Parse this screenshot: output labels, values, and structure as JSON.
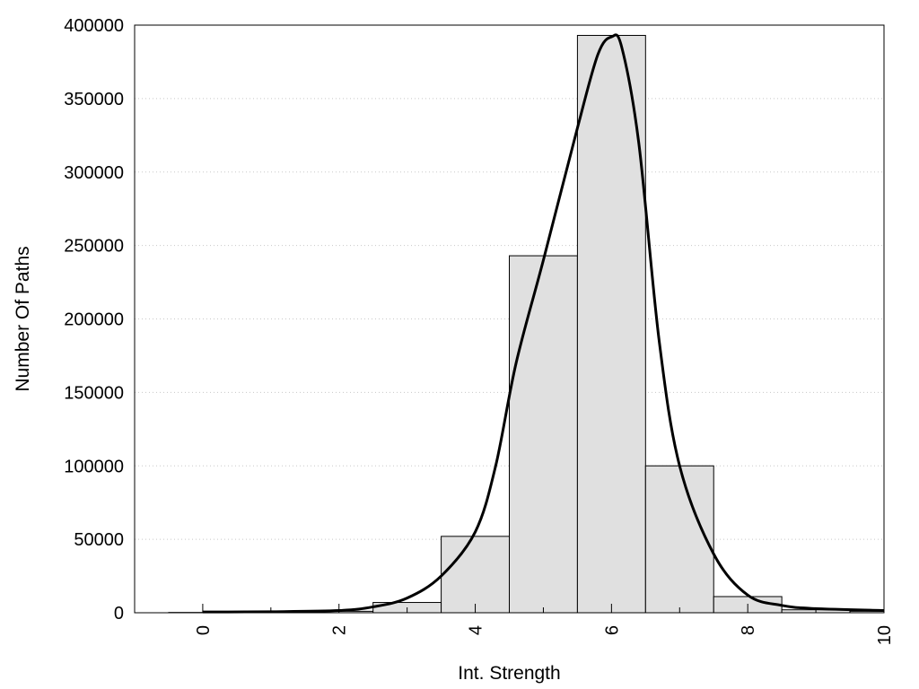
{
  "chart_data": {
    "type": "bar",
    "xlabel": "Int. Strength",
    "ylabel": "Number Of Paths",
    "xlim": [
      -1,
      10
    ],
    "ylim": [
      0,
      400000
    ],
    "x_ticks": [
      "0",
      "2",
      "4",
      "6",
      "8",
      "10"
    ],
    "y_ticks": [
      "0",
      "50000",
      "100000",
      "150000",
      "200000",
      "250000",
      "300000",
      "350000",
      "400000"
    ],
    "grid": "horizontal dotted",
    "legend": "none",
    "colors": {
      "bar_fill": "#e0e0e0",
      "bar_edge": "#000000",
      "curve": "#000000",
      "grid": "#c8c8c8"
    },
    "bars": [
      {
        "x": 0,
        "value": 200
      },
      {
        "x": 1,
        "value": 400
      },
      {
        "x": 2,
        "value": 1000
      },
      {
        "x": 3,
        "value": 7000
      },
      {
        "x": 4,
        "value": 52000
      },
      {
        "x": 5,
        "value": 243000
      },
      {
        "x": 6,
        "value": 393000
      },
      {
        "x": 7,
        "value": 100000
      },
      {
        "x": 8,
        "value": 11000
      },
      {
        "x": 9,
        "value": 2000
      },
      {
        "x": 10,
        "value": 1000
      }
    ],
    "curve": {
      "x": [
        0,
        1,
        2,
        2.5,
        3,
        3.5,
        4,
        4.3,
        4.6,
        5,
        5.5,
        5.8,
        6,
        6.15,
        6.4,
        6.7,
        7,
        7.5,
        8,
        8.5,
        9,
        10
      ],
      "y": [
        500,
        700,
        1500,
        4000,
        10000,
        25000,
        55000,
        100000,
        170000,
        240000,
        330000,
        380000,
        392000,
        385000,
        320000,
        185000,
        100000,
        40000,
        12000,
        5000,
        2800,
        1500
      ]
    }
  }
}
